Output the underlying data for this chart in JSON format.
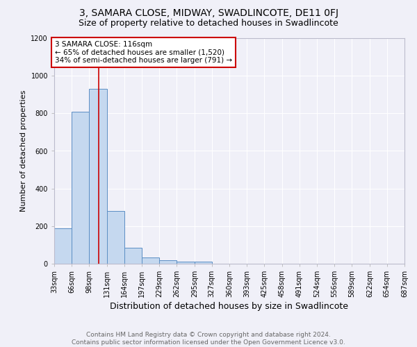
{
  "title": "3, SAMARA CLOSE, MIDWAY, SWADLINCOTE, DE11 0FJ",
  "subtitle": "Size of property relative to detached houses in Swadlincote",
  "xlabel": "Distribution of detached houses by size in Swadlincote",
  "ylabel": "Number of detached properties",
  "footer_line1": "Contains HM Land Registry data © Crown copyright and database right 2024.",
  "footer_line2": "Contains public sector information licensed under the Open Government Licence v3.0.",
  "bins": [
    33,
    66,
    98,
    131,
    164,
    197,
    229,
    262,
    295,
    327,
    360,
    393,
    425,
    458,
    491,
    524,
    556,
    589,
    622,
    654,
    687
  ],
  "bar_heights": [
    190,
    810,
    930,
    280,
    85,
    35,
    20,
    10,
    10,
    0,
    0,
    0,
    0,
    0,
    0,
    0,
    0,
    0,
    0,
    0
  ],
  "bar_color": "#c5d8ef",
  "bar_edge_color": "#5b8ec4",
  "property_line_x": 116,
  "annotation_text": "3 SAMARA CLOSE: 116sqm\n← 65% of detached houses are smaller (1,520)\n34% of semi-detached houses are larger (791) →",
  "annotation_box_color": "#ffffff",
  "annotation_box_edge": "#cc0000",
  "vline_color": "#cc0000",
  "ylim": [
    0,
    1200
  ],
  "title_fontsize": 10,
  "subtitle_fontsize": 9,
  "xlabel_fontsize": 9,
  "ylabel_fontsize": 8,
  "tick_fontsize": 7,
  "annotation_fontsize": 7.5,
  "footer_fontsize": 6.5,
  "background_color": "#f0f0f8"
}
